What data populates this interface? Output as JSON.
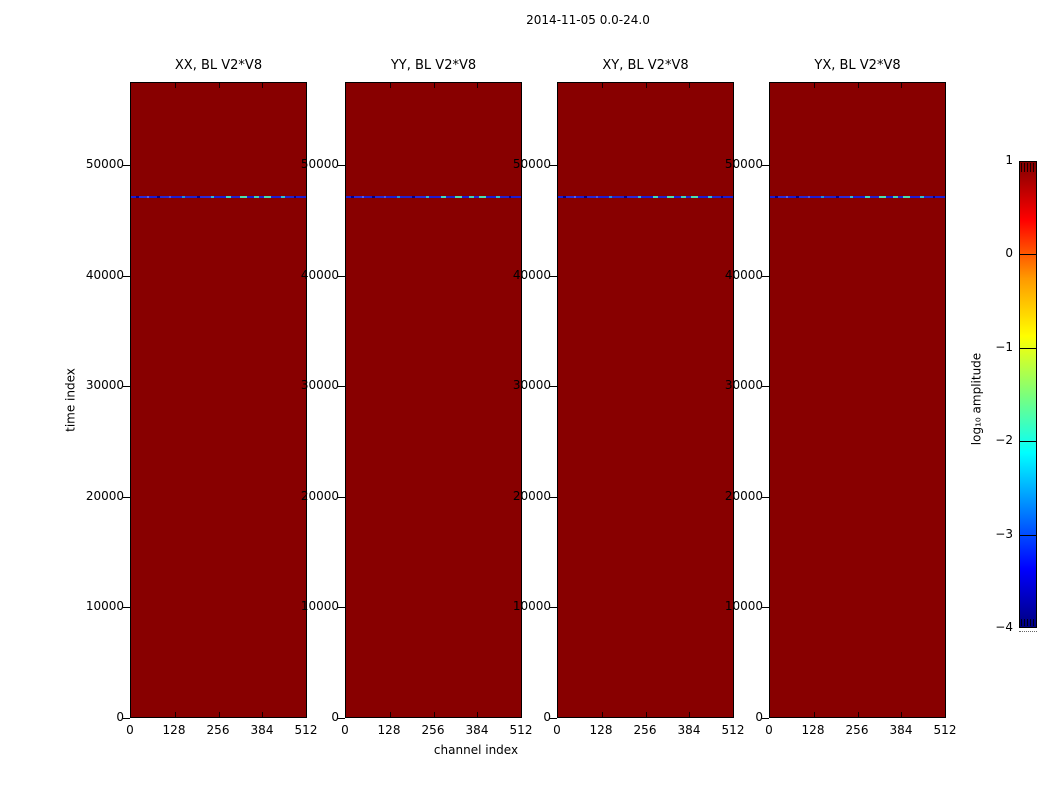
{
  "figure": {
    "suptitle": "2014-11-05 0.0-24.0",
    "xlabel": "channel index",
    "ylabel": "time index",
    "colorbar_label": "log₁₀ amplitude"
  },
  "chart_data": {
    "type": "heatmap",
    "title": "2014-11-05 0.0-24.0",
    "xlabel": "channel index",
    "ylabel": "time index",
    "panels": [
      {
        "title": "XX, BL V2*V8"
      },
      {
        "title": "YY, BL V2*V8"
      },
      {
        "title": "XY, BL V2*V8"
      },
      {
        "title": "YX, BL V2*V8"
      }
    ],
    "x_axis": {
      "range": [
        0,
        512
      ],
      "ticks": [
        0,
        128,
        256,
        384,
        512
      ],
      "tick_labels": [
        "0",
        "128",
        "256",
        "384",
        "512"
      ]
    },
    "y_axis": {
      "range": [
        0,
        57500
      ],
      "ticks": [
        0,
        10000,
        20000,
        30000,
        40000,
        50000
      ],
      "tick_labels": [
        "0",
        "10000",
        "20000",
        "30000",
        "40000",
        "50000"
      ]
    },
    "heatmap_background": {
      "value_log10_amplitude": 1,
      "color": "#880000"
    },
    "event_line": {
      "time_index": 47200,
      "segments": [
        {
          "start": 0.0,
          "end": 0.03,
          "color": "#1c1cd2"
        },
        {
          "start": 0.03,
          "end": 0.045,
          "color": "#000090"
        },
        {
          "start": 0.045,
          "end": 0.09,
          "color": "#2a2ad8"
        },
        {
          "start": 0.09,
          "end": 0.105,
          "color": "#5560e8"
        },
        {
          "start": 0.105,
          "end": 0.15,
          "color": "#1c1cd2"
        },
        {
          "start": 0.15,
          "end": 0.165,
          "color": "#000085"
        },
        {
          "start": 0.165,
          "end": 0.215,
          "color": "#2727d2"
        },
        {
          "start": 0.215,
          "end": 0.23,
          "color": "#4a55e0"
        },
        {
          "start": 0.23,
          "end": 0.29,
          "color": "#1c1cd2"
        },
        {
          "start": 0.29,
          "end": 0.31,
          "color": "#1f8fd8"
        },
        {
          "start": 0.31,
          "end": 0.375,
          "color": "#2222cc"
        },
        {
          "start": 0.375,
          "end": 0.395,
          "color": "#000090"
        },
        {
          "start": 0.395,
          "end": 0.455,
          "color": "#2a2ad8"
        },
        {
          "start": 0.455,
          "end": 0.475,
          "color": "#2fb9d0"
        },
        {
          "start": 0.475,
          "end": 0.545,
          "color": "#1c1cd2"
        },
        {
          "start": 0.545,
          "end": 0.57,
          "color": "#3cdcc0"
        },
        {
          "start": 0.57,
          "end": 0.625,
          "color": "#2222cc"
        },
        {
          "start": 0.625,
          "end": 0.66,
          "color": "#49e0ae"
        },
        {
          "start": 0.66,
          "end": 0.7,
          "color": "#1c1cd2"
        },
        {
          "start": 0.7,
          "end": 0.73,
          "color": "#3cd4b8"
        },
        {
          "start": 0.73,
          "end": 0.76,
          "color": "#2424ce"
        },
        {
          "start": 0.76,
          "end": 0.8,
          "color": "#47e0b0"
        },
        {
          "start": 0.8,
          "end": 0.855,
          "color": "#1c1cd2"
        },
        {
          "start": 0.855,
          "end": 0.88,
          "color": "#2fc2cc"
        },
        {
          "start": 0.88,
          "end": 0.93,
          "color": "#2222cc"
        },
        {
          "start": 0.93,
          "end": 0.945,
          "color": "#000090"
        },
        {
          "start": 0.945,
          "end": 1.0,
          "color": "#1c1cd2"
        }
      ]
    },
    "colorbar": {
      "label": "log₁₀ amplitude",
      "range": [
        -4,
        1
      ],
      "ticks": [
        1,
        0,
        -1,
        -2,
        -3,
        -4
      ],
      "tick_labels": [
        "1",
        "0",
        "−1",
        "−2",
        "−3",
        "−4"
      ],
      "colormap": "jet",
      "gradient_stops": [
        {
          "color": "#800000",
          "pos": 0
        },
        {
          "color": "#ff0000",
          "pos": 12.5
        },
        {
          "color": "#ff9900",
          "pos": 25
        },
        {
          "color": "#ffff00",
          "pos": 37.5
        },
        {
          "color": "#7dff7a",
          "pos": 50
        },
        {
          "color": "#00ffff",
          "pos": 62.5
        },
        {
          "color": "#0000ff",
          "pos": 87.5
        },
        {
          "color": "#000080",
          "pos": 100
        }
      ]
    }
  }
}
